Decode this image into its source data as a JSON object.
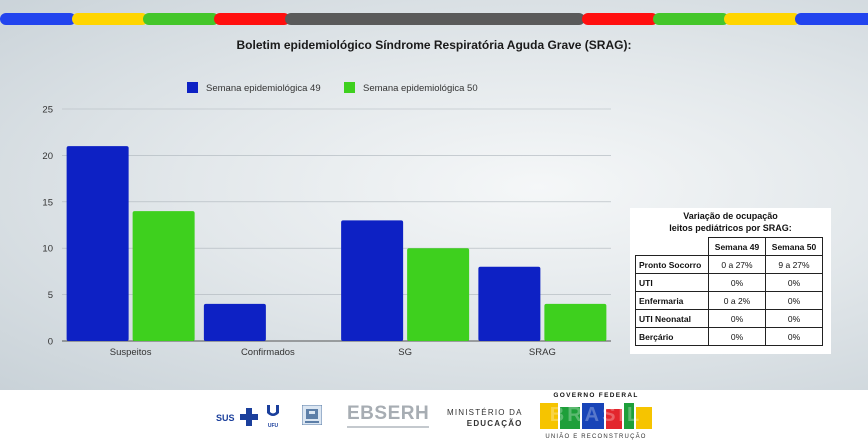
{
  "colors": {
    "series1": "#0d21c4",
    "series2": "#3ed01e",
    "stripe_yellow": "#ffd500",
    "stripe_green": "#44c62a",
    "stripe_red": "#ff0f0f",
    "stripe_gray": "#5a5a5a",
    "stripe_blue": "#2244ee"
  },
  "chart_data": {
    "type": "bar",
    "title": "Boletim epidemiológico Síndrome Respiratória Aguda Grave (SRAG):",
    "categories": [
      "Suspeitos",
      "Confirmados",
      "SG",
      "SRAG"
    ],
    "series": [
      {
        "name": "Semana epidemiológica 49",
        "values": [
          21,
          4,
          13,
          8
        ]
      },
      {
        "name": "Semana epidemiológica 50",
        "values": [
          14,
          0,
          10,
          4
        ]
      }
    ],
    "ylim": [
      0,
      25
    ],
    "yticks": [
      "0",
      "5",
      "10",
      "15",
      "20",
      "25"
    ],
    "grid": true,
    "legend": "top"
  },
  "occupancy": {
    "title_line1": "Variação de ocupação",
    "title_line2": "leitos pediátricos por SRAG:",
    "headers": [
      "Semana 49",
      "Semana 50"
    ],
    "rows": [
      {
        "label": "Pronto Socorro",
        "w49": "0 a 27%",
        "w50": "9 a 27%"
      },
      {
        "label": "UTI",
        "w49": "0%",
        "w50": "0%"
      },
      {
        "label": "Enfermaria",
        "w49": "0 a 2%",
        "w50": "0%"
      },
      {
        "label": "UTI Neonatal",
        "w49": "0%",
        "w50": "0%"
      },
      {
        "label": "Berçário",
        "w49": "0%",
        "w50": "0%"
      }
    ]
  },
  "footer": {
    "sus": "SUS",
    "ufu": "UFU",
    "ebserh": "EBSERH",
    "ministry_line1": "MINISTÉRIO DA",
    "ministry_line2": "EDUCAÇÃO",
    "gov": "GOVERNO FEDERAL",
    "brasil": "BRASIL",
    "slogan": "UNIÃO E RECONSTRUÇÃO"
  }
}
